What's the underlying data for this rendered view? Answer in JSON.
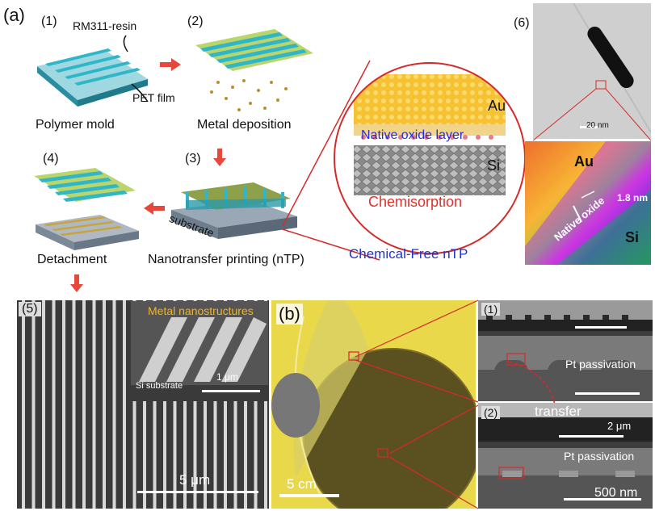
{
  "panel_a": {
    "tag": "(a)",
    "steps": [
      {
        "num": "(1)",
        "caption": "Polymer mold",
        "annotations": [
          "RM311-resin",
          "PET film"
        ]
      },
      {
        "num": "(2)",
        "caption": "Metal deposition"
      },
      {
        "num": "(3)",
        "caption": "Nanotransfer printing (nTP)",
        "annotations": [
          "substrate"
        ]
      },
      {
        "num": "(4)",
        "caption": "Detachment"
      }
    ],
    "zoom": {
      "top_label": "Au",
      "middle_label": "Native oxide layer",
      "bottom_label": "Si",
      "bottom_caption": "Chemisorption"
    },
    "method_title": "Chemical-Free nTP",
    "tem": {
      "num": "(6)",
      "scale": "20 nm",
      "au": "Au",
      "si": "Si",
      "thickness": "1.8 nm",
      "oxide": "Native oxide"
    }
  },
  "panel_5": {
    "num": "(5)",
    "inset_title": "Metal nanostructures",
    "inset_sub": "Si substrate",
    "inset_scale": "1 μm",
    "scale": "5 μm"
  },
  "panel_b": {
    "tag": "(b)",
    "photo_scale": "5 cm",
    "sem1_num": "(1)",
    "sem1_label": "Pt passivation",
    "transfer": "transfer",
    "sem2_num": "(2)",
    "sem2_scale_top": "2 μm",
    "sem2_label": "Pt passivation",
    "sem2_scale": "500 nm"
  },
  "colors": {
    "arrow": "#e8473c",
    "mold_teal": "#2fb7c9",
    "gold": "#c8a53a",
    "chemisorption": "#e0302a",
    "method": "#2233cc",
    "oxide_text": "#2a2adc"
  }
}
